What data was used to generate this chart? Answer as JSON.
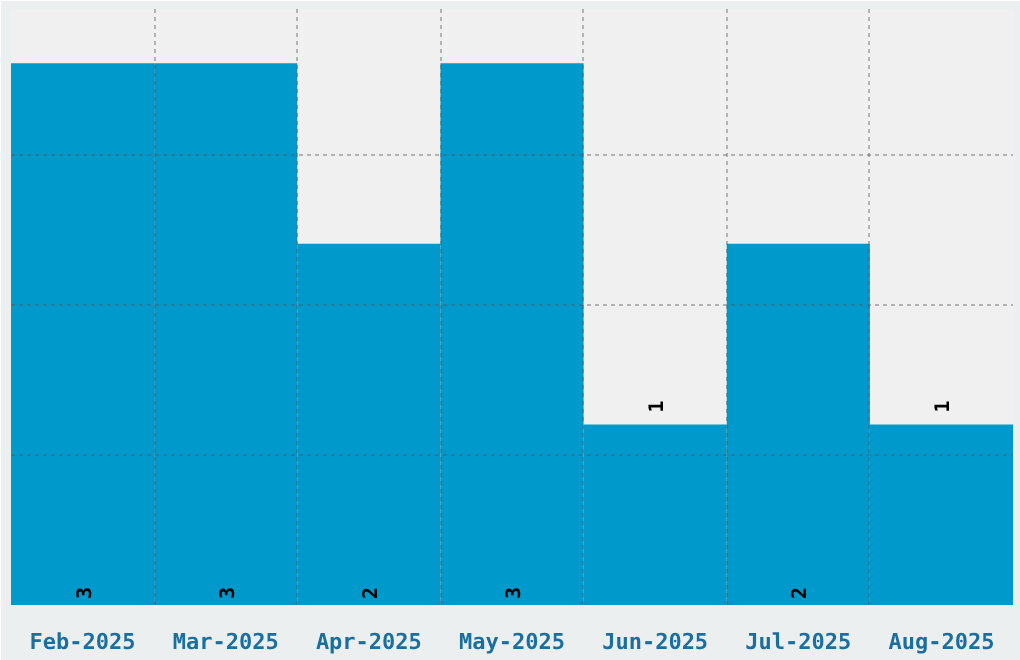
{
  "chart_data": {
    "type": "bar",
    "categories": [
      "Feb-2025",
      "Mar-2025",
      "Apr-2025",
      "May-2025",
      "Jun-2025",
      "Jul-2025",
      "Aug-2025"
    ],
    "values": [
      3,
      3,
      2,
      3,
      1,
      2,
      1
    ],
    "color": "#0099cc",
    "ylim": [
      0,
      3.3
    ],
    "yticks": [
      {
        "value": 0.83,
        "label": null
      },
      {
        "value": 1.66,
        "label": null
      },
      {
        "value": 2.49,
        "label": null
      }
    ],
    "tick_labels": "x",
    "grid": true,
    "data_labels": true
  }
}
